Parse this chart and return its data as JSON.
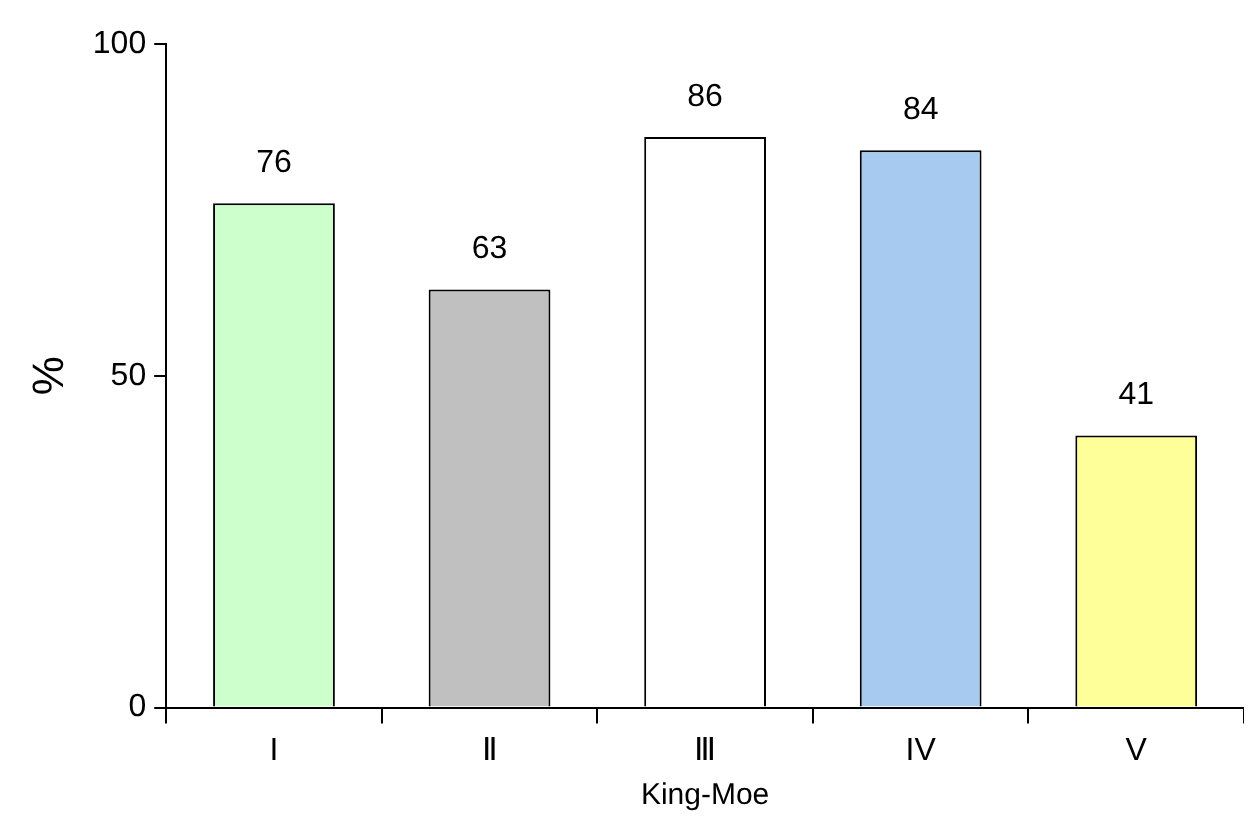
{
  "chart_data": {
    "type": "bar",
    "xlabel": "King-Moe",
    "ylabel": "%",
    "categories": [
      "I",
      "Ⅱ",
      "Ⅲ",
      "IV",
      "V"
    ],
    "values": [
      76,
      63,
      86,
      84,
      41
    ],
    "colors": [
      "#ccffcc",
      "#c0c0c0",
      "#ffffff",
      "#a6caf0",
      "#ffff99"
    ],
    "ylim": [
      0,
      100
    ],
    "yticks": [
      0,
      50,
      100
    ],
    "grid": false,
    "data_labels": true
  }
}
